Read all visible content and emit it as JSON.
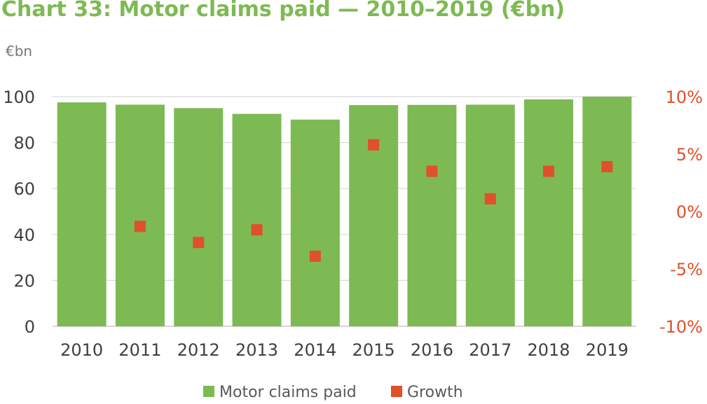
{
  "title": "Chart 33: Motor claims paid — 2010–2019 (€bn)",
  "chart_data": {
    "type": "bar",
    "title": "Chart 33: Motor claims paid — 2010–2019 (€bn)",
    "y_unit_label": "€bn",
    "categories": [
      "2010",
      "2011",
      "2012",
      "2013",
      "2014",
      "2015",
      "2016",
      "2017",
      "2018",
      "2019"
    ],
    "series": [
      {
        "name": "Motor claims paid",
        "type": "bar",
        "axis": "left",
        "color": "#7dba53",
        "values": [
          97.5,
          96.5,
          95.0,
          92.5,
          90.0,
          96.3,
          96.4,
          96.5,
          98.8,
          100.0
        ]
      },
      {
        "name": "Growth",
        "type": "scatter",
        "axis": "right",
        "color": "#e0502a",
        "marker": "square",
        "values": [
          null,
          -1.3,
          -2.7,
          -1.6,
          -3.9,
          5.8,
          3.5,
          1.1,
          3.5,
          3.9
        ]
      }
    ],
    "y_left": {
      "min": 0,
      "max": 100,
      "ticks": [
        "0",
        "20",
        "40",
        "60",
        "80",
        "100"
      ],
      "tick_values": [
        0,
        20,
        40,
        60,
        80,
        100
      ]
    },
    "y_right": {
      "min": -10,
      "max": 10,
      "ticks": [
        "-10%",
        "-5%",
        "0%",
        "5%",
        "10%"
      ],
      "tick_values": [
        -10,
        -5,
        0,
        5,
        10
      ]
    },
    "grid": true,
    "legend_position": "bottom"
  }
}
